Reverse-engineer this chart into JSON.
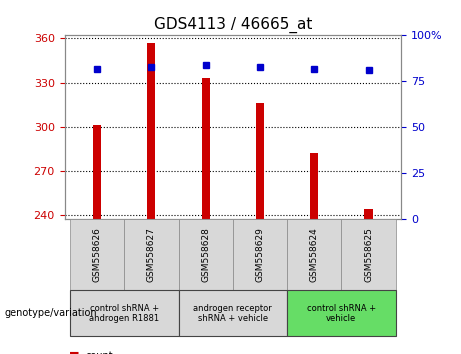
{
  "title": "GDS4113 / 46665_at",
  "samples": [
    "GSM558626",
    "GSM558627",
    "GSM558628",
    "GSM558629",
    "GSM558624",
    "GSM558625"
  ],
  "counts": [
    301,
    357,
    333,
    316,
    282,
    244
  ],
  "percentiles": [
    82,
    83,
    84,
    83,
    82,
    81
  ],
  "ylim_left": [
    237,
    362
  ],
  "ylim_right": [
    0,
    100
  ],
  "yticks_left": [
    240,
    270,
    300,
    330,
    360
  ],
  "yticks_right": [
    0,
    25,
    50,
    75,
    100
  ],
  "bar_color": "#cc0000",
  "dot_color": "#0000cc",
  "bar_bottom": 237,
  "groups": [
    {
      "label": "control shRNA +\nandrogen R1881",
      "samples": [
        "GSM558626",
        "GSM558627"
      ],
      "color": "#d8d8d8"
    },
    {
      "label": "androgen receptor\nshRNA + vehicle",
      "samples": [
        "GSM558628",
        "GSM558629"
      ],
      "color": "#d8d8d8"
    },
    {
      "label": "control shRNA +\nvehicle",
      "samples": [
        "GSM558624",
        "GSM558625"
      ],
      "color": "#66dd66"
    }
  ],
  "title_fontsize": 11,
  "tick_fontsize": 8,
  "label_color_left": "#cc0000",
  "label_color_right": "#0000cc",
  "sample_box_color": "#d8d8d8",
  "bar_width": 0.15
}
